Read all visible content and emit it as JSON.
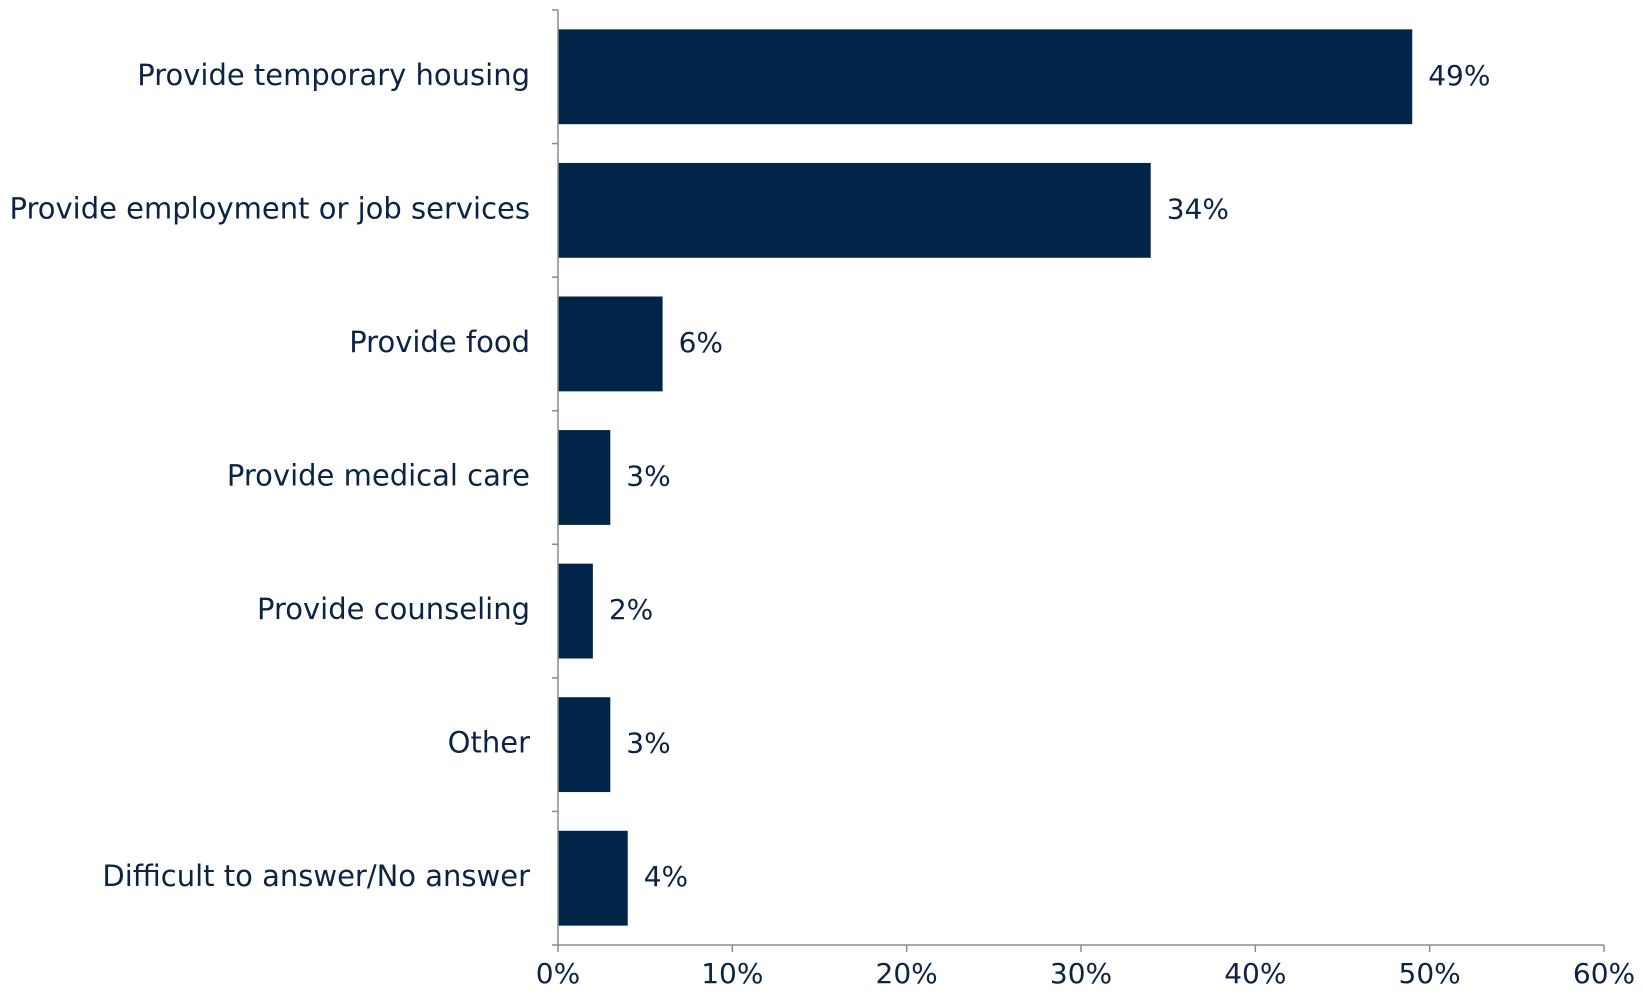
{
  "chart_data": {
    "type": "bar",
    "orientation": "horizontal",
    "categories": [
      "Provide temporary housing",
      "Provide employment or job services",
      "Provide food",
      "Provide medical care",
      "Provide counseling",
      "Other",
      "Difficult to answer/No answer"
    ],
    "values": [
      49,
      34,
      6,
      3,
      2,
      3,
      4
    ],
    "value_labels": [
      "49%",
      "34%",
      "6%",
      "3%",
      "2%",
      "3%",
      "4%"
    ],
    "xlim": [
      0,
      60
    ],
    "x_ticks": [
      0,
      10,
      20,
      30,
      40,
      50,
      60
    ],
    "x_tick_labels": [
      "0%",
      "10%",
      "20%",
      "30%",
      "40%",
      "50%",
      "60%"
    ],
    "title": "",
    "xlabel": "",
    "ylabel": "",
    "grid": false,
    "legend": "none",
    "bar_color": "#002548"
  }
}
